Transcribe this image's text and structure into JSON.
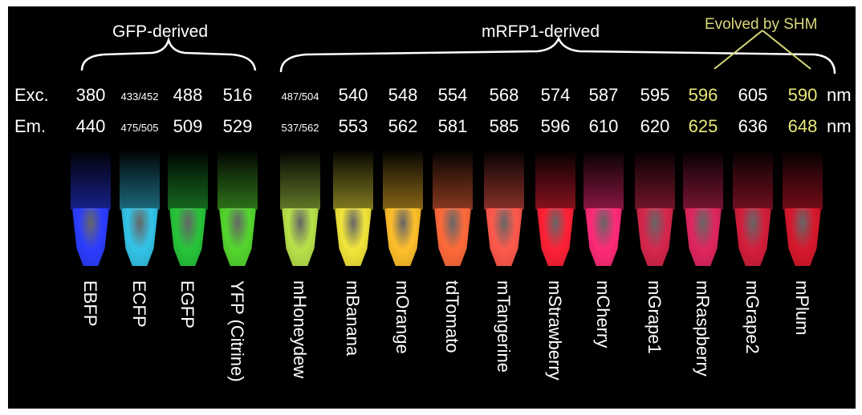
{
  "groups": {
    "gfp": "GFP-derived",
    "mrfp": "mRFP1-derived",
    "shm": "Evolved by SHM"
  },
  "rows": {
    "exc_label": "Exc.",
    "em_label": "Em.",
    "unit": "nm"
  },
  "proteins": [
    {
      "name": "EBFP",
      "exc": "380",
      "em": "440",
      "color": "#2b3dff"
    },
    {
      "name": "ECFP",
      "exc": "433/452",
      "em": "475/505",
      "color": "#33c4e8"
    },
    {
      "name": "EGFP",
      "exc": "488",
      "em": "509",
      "color": "#27c43a"
    },
    {
      "name": "YFP (Citrine)",
      "exc": "516",
      "em": "529",
      "color": "#54d62e"
    },
    {
      "name": "mHoneydew",
      "exc": "487/504",
      "em": "537/562",
      "color": "#b8e24a"
    },
    {
      "name": "mBanana",
      "exc": "540",
      "em": "553",
      "color": "#f2e63a"
    },
    {
      "name": "mOrange",
      "exc": "548",
      "em": "562",
      "color": "#ffbf2a"
    },
    {
      "name": "tdTomato",
      "exc": "554",
      "em": "581",
      "color": "#ff6a3a"
    },
    {
      "name": "mTangerine",
      "exc": "568",
      "em": "585",
      "color": "#ff5a4c"
    },
    {
      "name": "mStrawberry",
      "exc": "574",
      "em": "596",
      "color": "#ff2035"
    },
    {
      "name": "mCherry",
      "exc": "587",
      "em": "610",
      "color": "#ff2a78"
    },
    {
      "name": "mGrape1",
      "exc": "595",
      "em": "620",
      "color": "#d6264c"
    },
    {
      "name": "mRaspberry",
      "exc": "596",
      "em": "625",
      "color": "#e0265e",
      "shm": true
    },
    {
      "name": "mGrape2",
      "exc": "605",
      "em": "636",
      "color": "#d41e3c"
    },
    {
      "name": "mPlum",
      "exc": "590",
      "em": "648",
      "color": "#d8182c",
      "shm": true
    }
  ]
}
